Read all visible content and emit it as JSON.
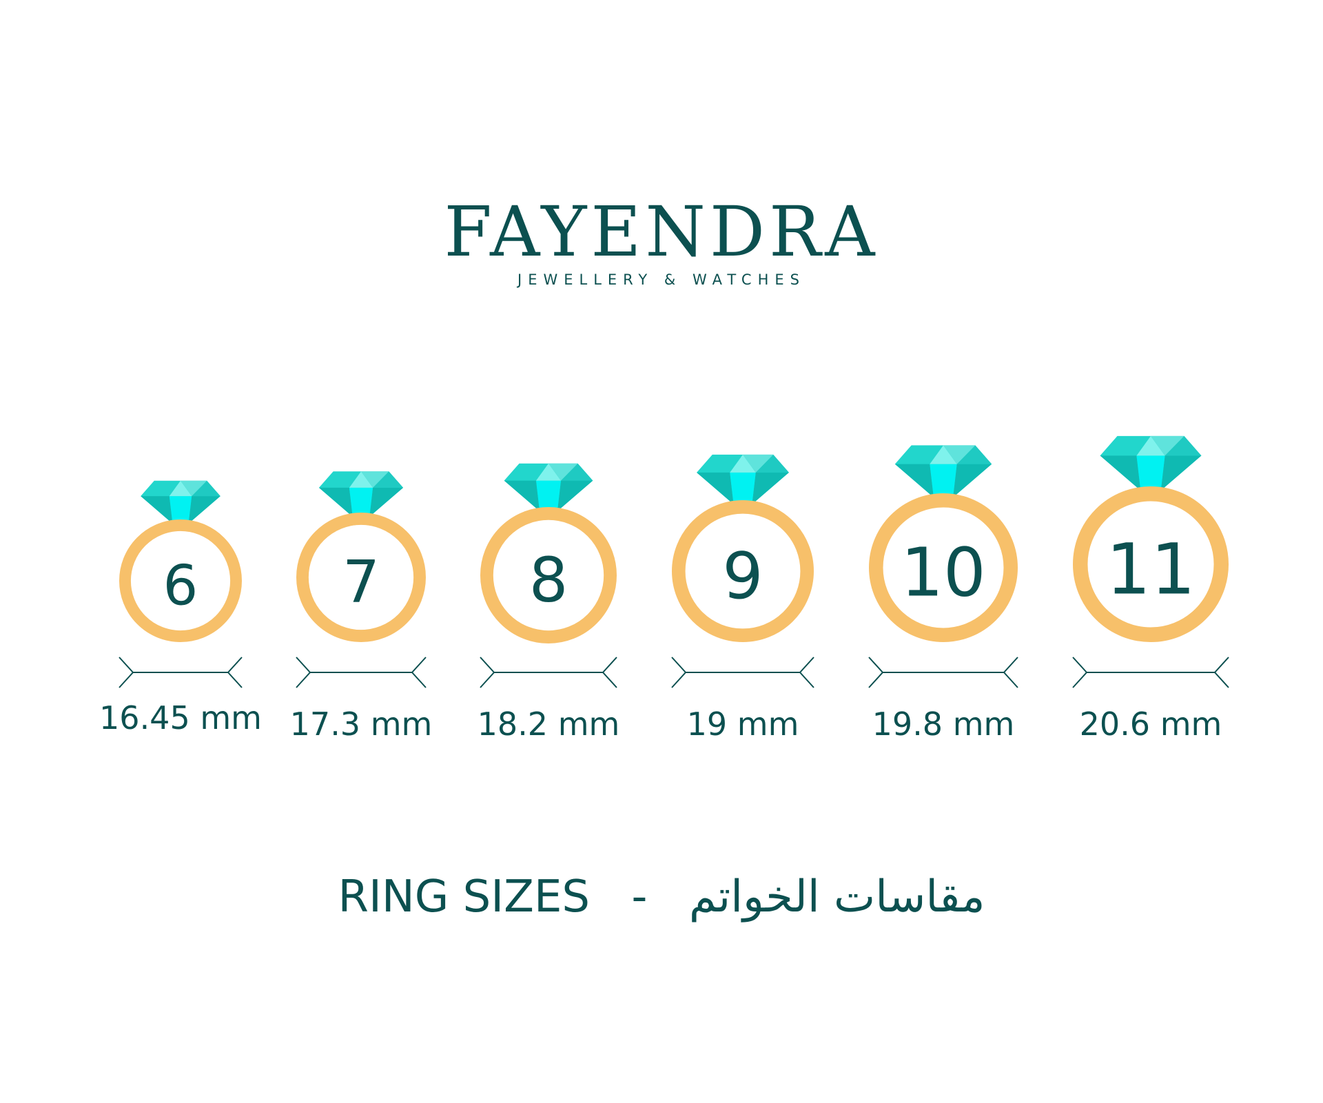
{
  "brand": {
    "name": "FAYENDRA",
    "tagline": "JEWELLERY & WATCHES"
  },
  "colors": {
    "text": "#0c5050",
    "ring": "#f7c06a",
    "gem_dark": "#0fbab2",
    "gem_mid": "#22d6cc",
    "gem_light": "#7ff2ec",
    "gem_core": "#00f2f2"
  },
  "rings": [
    {
      "size": "6",
      "diameter": "16.45 mm"
    },
    {
      "size": "7",
      "diameter": "17.3 mm"
    },
    {
      "size": "8",
      "diameter": "18.2 mm"
    },
    {
      "size": "9",
      "diameter": "19 mm"
    },
    {
      "size": "10",
      "diameter": "19.8 mm"
    },
    {
      "size": "11",
      "diameter": "20.6 mm"
    }
  ],
  "title": {
    "english": "RING SIZES",
    "separator": "-",
    "arabic": "مقاسات الخواتم"
  }
}
